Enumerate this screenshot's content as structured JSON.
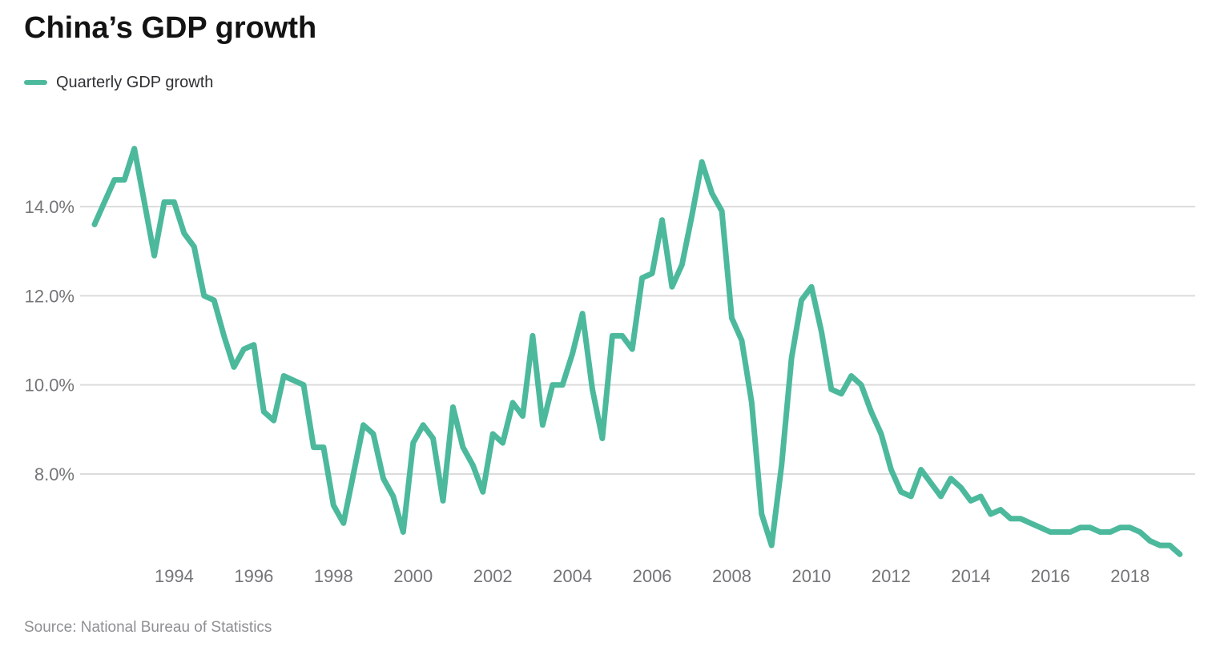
{
  "header": {
    "title": "China’s GDP growth"
  },
  "legend": {
    "label": "Quarterly GDP growth"
  },
  "footer": {
    "source": "Source: National Bureau of Statistics"
  },
  "chart_data": {
    "type": "line",
    "title": "China’s GDP growth",
    "xlabel": "",
    "ylabel": "",
    "legend_position": "top-left",
    "grid": "horizontal-only",
    "series": [
      {
        "name": "Quarterly GDP growth",
        "unit": "%",
        "frequency": "quarterly",
        "start_year": 1992,
        "start_quarter": 1,
        "end_year": 2019,
        "end_quarter": 2,
        "values": [
          13.6,
          14.1,
          14.6,
          14.6,
          15.3,
          14.1,
          12.9,
          14.1,
          14.1,
          13.4,
          13.1,
          12.0,
          11.9,
          11.1,
          10.4,
          10.8,
          10.9,
          9.4,
          9.2,
          10.2,
          10.1,
          10.0,
          8.6,
          8.6,
          7.3,
          6.9,
          8.0,
          9.1,
          8.9,
          7.9,
          7.5,
          6.7,
          8.7,
          9.1,
          8.8,
          7.4,
          9.5,
          8.6,
          8.2,
          7.6,
          8.9,
          8.7,
          9.6,
          9.3,
          11.1,
          9.1,
          10.0,
          10.0,
          10.7,
          11.6,
          9.9,
          8.8,
          11.1,
          11.1,
          10.8,
          12.4,
          12.5,
          13.7,
          12.2,
          12.7,
          13.8,
          15.0,
          14.3,
          13.9,
          11.5,
          11.0,
          9.6,
          7.1,
          6.4,
          8.2,
          10.6,
          11.9,
          12.2,
          11.2,
          9.9,
          9.8,
          10.2,
          10.0,
          9.4,
          8.9,
          8.1,
          7.6,
          7.5,
          8.1,
          7.8,
          7.5,
          7.9,
          7.7,
          7.4,
          7.5,
          7.1,
          7.2,
          7.0,
          7.0,
          6.9,
          6.8,
          6.7,
          6.7,
          6.7,
          6.8,
          6.8,
          6.7,
          6.7,
          6.8,
          6.8,
          6.7,
          6.5,
          6.4,
          6.4,
          6.2
        ]
      }
    ],
    "y_axis": {
      "ticks": [
        {
          "label": "8.0%",
          "value": 8
        },
        {
          "label": "10.0%",
          "value": 10
        },
        {
          "label": "12.0%",
          "value": 12
        },
        {
          "label": "14.0%",
          "value": 14
        }
      ],
      "range": [
        5.9,
        15.9
      ],
      "gridlines": true
    },
    "x_axis": {
      "ticks": [
        {
          "label": "1994",
          "year": 1994
        },
        {
          "label": "1996",
          "year": 1996
        },
        {
          "label": "1998",
          "year": 1998
        },
        {
          "label": "2000",
          "year": 2000
        },
        {
          "label": "2002",
          "year": 2002
        },
        {
          "label": "2004",
          "year": 2004
        },
        {
          "label": "2006",
          "year": 2006
        },
        {
          "label": "2008",
          "year": 2008
        },
        {
          "label": "2010",
          "year": 2010
        },
        {
          "label": "2012",
          "year": 2012
        },
        {
          "label": "2014",
          "year": 2014
        },
        {
          "label": "2016",
          "year": 2016
        },
        {
          "label": "2018",
          "year": 2018
        }
      ],
      "range_years": [
        1991.9,
        2019.6
      ]
    },
    "colors": {
      "line": "#4CB99C",
      "gridline": "#DCDCDC",
      "tick_text": "#737577",
      "title_text": "#131313",
      "legend_text": "#2F3133",
      "source_text": "#8E9092",
      "background": "#FFFFFF"
    }
  }
}
